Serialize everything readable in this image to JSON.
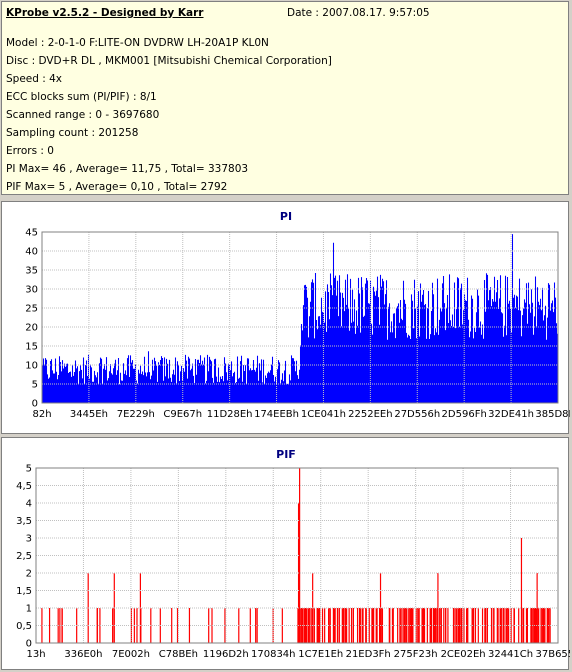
{
  "info": {
    "title": "KProbe v2.5.2 - Designed by Karr",
    "date": "Date : 2007.08.17. 9:57:05",
    "lines": [
      "Model : 2-0-1-0 F:LITE-ON DVDRW LH-20A1P   KL0N",
      "Disc : DVD+R DL , MKM001 [Mitsubishi Chemical Corporation]",
      "Speed : 4x",
      "ECC blocks sum (PI/PIF) : 8/1",
      "Scanned range : 0 - 3697680",
      "Sampling count : 201258",
      "Errors : 0",
      "PI Max= 46 , Average= 11,75 , Total= 337803",
      "PIF Max= 5 , Average= 0,10 , Total= 2792"
    ]
  },
  "chart_data": [
    {
      "type": "bar",
      "title": "PI",
      "color": "#0000ff",
      "ylim": [
        0,
        46
      ],
      "yticks": [
        "0",
        "5",
        "10",
        "15",
        "20",
        "25",
        "30",
        "35",
        "40",
        "45"
      ],
      "xticks": [
        "82h",
        "3445Eh",
        "7E229h",
        "C9E67h",
        "11D28Eh",
        "174EEBh",
        "1CE041h",
        "2252EEh",
        "27D556h",
        "2D596Fh",
        "32DE41h",
        "385D8Fh"
      ],
      "grid": true,
      "profile": [
        {
          "from": 0.0,
          "to": 0.5,
          "base": 9,
          "spread": 4,
          "max": 14
        },
        {
          "from": 0.5,
          "to": 0.52,
          "base": 25,
          "spread": 10,
          "max": 36
        },
        {
          "from": 0.52,
          "to": 1.0,
          "base": 26,
          "spread": 9,
          "max": 46
        }
      ],
      "max_value": 46,
      "average": 11.75
    },
    {
      "type": "bar",
      "title": "PIF",
      "color": "#ff0000",
      "ylim": [
        0,
        5
      ],
      "yticks": [
        "0",
        "0,5",
        "1",
        "1,5",
        "2",
        "2,5",
        "3",
        "3,5",
        "4",
        "4,5",
        "5"
      ],
      "xticks": [
        "13h",
        "336E0h",
        "7E002h",
        "C78BEh",
        "1196D2h",
        "170834h",
        "1C7E1Eh",
        "21ED3Fh",
        "275F23h",
        "2CE02Eh",
        "32441Ch",
        "37B655h"
      ],
      "grid": true,
      "spikes": [
        {
          "x": 0.505,
          "value": 5
        },
        {
          "x": 0.503,
          "value": 4
        },
        {
          "x": 0.93,
          "value": 3
        },
        {
          "x": 0.1,
          "value": 2
        },
        {
          "x": 0.15,
          "value": 2
        },
        {
          "x": 0.2,
          "value": 2
        },
        {
          "x": 0.53,
          "value": 2
        },
        {
          "x": 0.66,
          "value": 2
        },
        {
          "x": 0.77,
          "value": 2
        },
        {
          "x": 0.96,
          "value": 2
        }
      ],
      "max_value": 5,
      "average": 0.1
    }
  ]
}
